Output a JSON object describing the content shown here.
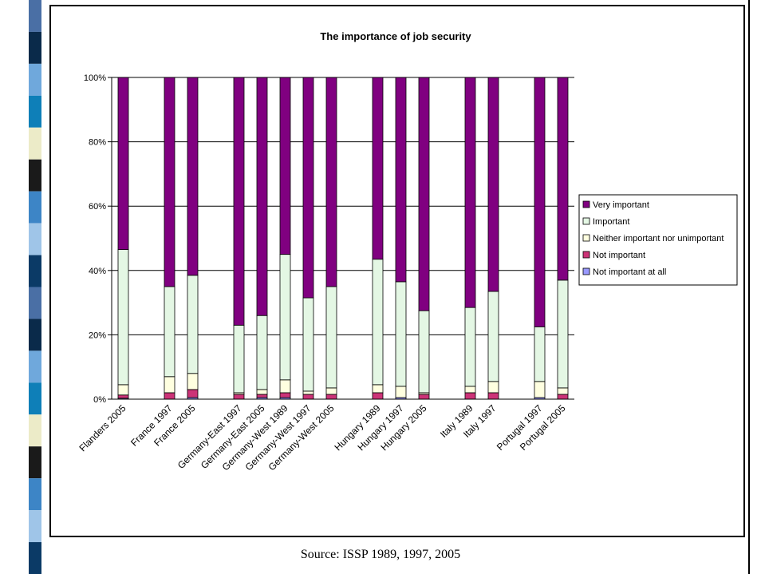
{
  "chart_data": {
    "type": "bar",
    "stacked": true,
    "title": "The importance of job security",
    "xlabel": "",
    "ylabel": "",
    "ylim": [
      0,
      100
    ],
    "y_ticks": [
      "0%",
      "20%",
      "40%",
      "60%",
      "80%",
      "100%"
    ],
    "grid": true,
    "legend_position": "right",
    "categories": [
      "Flanders 2005",
      "",
      "France 1997",
      "France 2005",
      "",
      "Germany-East 1997",
      "Germany-East 2005",
      "Germany-West 1989",
      "Germany-West 1997",
      "Germany-West 2005",
      "",
      "Hungary 1989",
      "Hungary 1997",
      "Hungary 2005",
      "",
      "Italy 1989",
      "Italy 1997",
      "",
      "Portugal 1997",
      "Portugal 2005"
    ],
    "series": [
      {
        "name": "Not important at all",
        "color": "#9999ff",
        "values": [
          0.3,
          null,
          0,
          0.5,
          null,
          0,
          0.5,
          0.5,
          0,
          0,
          null,
          0,
          0.5,
          0,
          null,
          0,
          0,
          null,
          0.5,
          0
        ]
      },
      {
        "name": "Not important",
        "color": "#cc3377",
        "values": [
          1,
          null,
          2,
          2.5,
          null,
          1.5,
          1,
          1.5,
          1.5,
          1.5,
          null,
          2,
          0,
          1.5,
          null,
          2,
          2,
          null,
          0,
          1.5
        ]
      },
      {
        "name": "Neither important nor unimportant",
        "color": "#ffffe0",
        "values": [
          3.2,
          null,
          5,
          5,
          null,
          0.5,
          1.5,
          4,
          1,
          2,
          null,
          2.5,
          3.5,
          0.5,
          null,
          2,
          3.5,
          null,
          5,
          2
        ]
      },
      {
        "name": "Important",
        "color": "#e4f7e4",
        "values": [
          42,
          null,
          28,
          30.5,
          null,
          21,
          23,
          39,
          29,
          31.5,
          null,
          39,
          32.5,
          25.5,
          null,
          24.5,
          28,
          null,
          17,
          33.5
        ]
      },
      {
        "name": "Very important",
        "color": "#800080",
        "values": [
          53.5,
          null,
          65,
          61.5,
          null,
          77,
          74,
          55,
          68.5,
          65,
          null,
          56.5,
          63.5,
          72.5,
          null,
          71.5,
          66.5,
          null,
          77.5,
          63
        ]
      }
    ]
  },
  "source_caption": "Source: ISSP 1989, 1997, 2005",
  "left_strip_colors": [
    "#4a6fa5",
    "#0a2a4a",
    "#6fa8dc",
    "#0e7fb8",
    "#ecebc8",
    "#1a1a1a",
    "#3d85c6",
    "#9fc5e8",
    "#0b3a66"
  ]
}
